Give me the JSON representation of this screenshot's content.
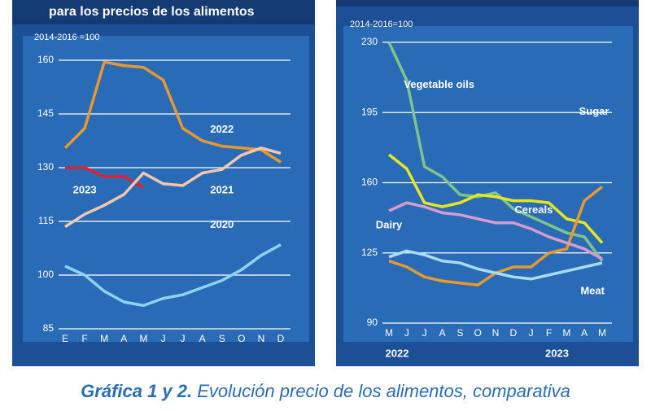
{
  "chart_data": [
    {
      "type": "line",
      "title": "para los precios de los alimentos",
      "unit": "2014-2016 =100",
      "categories": [
        "E",
        "F",
        "M",
        "A",
        "M",
        "J",
        "J",
        "A",
        "S",
        "O",
        "N",
        "D"
      ],
      "ylim": [
        85,
        165
      ],
      "yticks": [
        85,
        100,
        115,
        130,
        145,
        160
      ],
      "grid": true,
      "series": [
        {
          "name": "2022",
          "color": "#e8992e",
          "values": [
            135.5,
            141,
            159.5,
            158.5,
            158,
            154.5,
            141,
            137.5,
            136,
            135.5,
            135,
            131.5
          ]
        },
        {
          "name": "2023",
          "color": "#d7262e",
          "values": [
            130,
            130,
            127.5,
            127.5,
            124.5,
            null,
            null,
            null,
            null,
            null,
            null,
            null
          ]
        },
        {
          "name": "2021",
          "color": "#f2c8ac",
          "values": [
            113.5,
            117,
            119.5,
            122.5,
            128.5,
            125.5,
            125,
            128.5,
            129.5,
            133.5,
            135.5,
            134
          ]
        },
        {
          "name": "2020",
          "color": "#8fd3f4",
          "values": [
            102.5,
            100,
            95.5,
            92.5,
            91.5,
            93.5,
            94.5,
            96.5,
            98.5,
            101.5,
            105.5,
            108.5
          ]
        }
      ]
    },
    {
      "type": "line",
      "unit": "2014-2016=100",
      "categories": [
        "M",
        "J",
        "J",
        "A",
        "S",
        "O",
        "N",
        "D",
        "J",
        "F",
        "M",
        "A",
        "M"
      ],
      "year_labels": [
        "2022",
        "2023"
      ],
      "ylim": [
        90,
        230
      ],
      "yticks": [
        90,
        125,
        160,
        195,
        230
      ],
      "grid": true,
      "series": [
        {
          "name": "Vegetable oils",
          "color": "#7cc48a",
          "values": [
            230,
            211,
            168,
            163,
            154,
            153,
            155,
            147,
            143,
            139,
            135,
            133,
            121
          ]
        },
        {
          "name": "Cereals",
          "color": "#e6e61e",
          "values": [
            174,
            167,
            150,
            148,
            150,
            154,
            153,
            151,
            151,
            150,
            142,
            140,
            130
          ]
        },
        {
          "name": "Sugar",
          "color": "#e8992e",
          "values": [
            121,
            118,
            113,
            111,
            110,
            109,
            115,
            118,
            118,
            125,
            127,
            151,
            158
          ]
        },
        {
          "name": "Dairy",
          "color": "#d69ccc",
          "values": [
            146,
            150,
            148,
            145,
            144,
            142,
            140,
            140,
            137,
            133,
            130,
            127,
            122
          ]
        },
        {
          "name": "Meat",
          "color": "#a8dcf4",
          "values": [
            123,
            126,
            124,
            121,
            120,
            117,
            115,
            113,
            112,
            114,
            116,
            118,
            120
          ]
        }
      ]
    }
  ],
  "caption": {
    "bold": "Gráfica 1 y 2.",
    "text": " Evolución precio de los alimentos, comparativa"
  }
}
